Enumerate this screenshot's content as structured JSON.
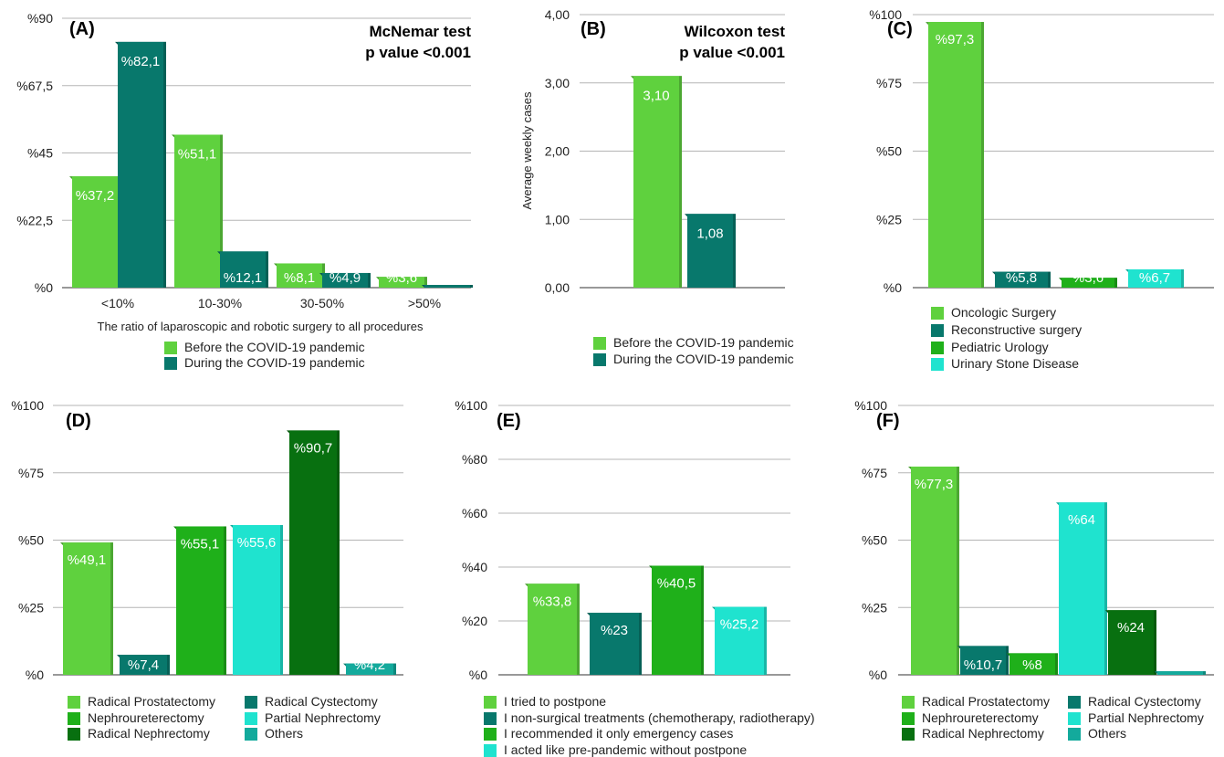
{
  "colors": {
    "light_green": "#5fd13e",
    "teal": "#08786c",
    "green": "#1fb01a",
    "cyan": "#1fe3cf",
    "dark_green": "#087010",
    "sea": "#13aa9c"
  },
  "chart_data": [
    {
      "id": "A",
      "type": "bar",
      "panel_label": "(A)",
      "stat_line1": "McNemar test",
      "stat_line2": "p value <0.001",
      "xlabel": "The ratio of laparoscopic and robotic surgery to all procedures",
      "ylabel": "",
      "ylim": [
        0,
        90
      ],
      "yticks": [
        0,
        22.5,
        45,
        67.5,
        90
      ],
      "ytick_labels": [
        "%0",
        "%22,5",
        "%45",
        "%67,5",
        "%90"
      ],
      "categories": [
        "<10%",
        "10-30%",
        "30-50%",
        ">50%"
      ],
      "series": [
        {
          "name": "Before the COVID-19 pandemic",
          "color": "#5fd13e",
          "values": [
            37.2,
            51.1,
            8.1,
            3.6
          ],
          "labels": [
            "%37,2",
            "%51,1",
            "%8,1",
            "%3,6"
          ]
        },
        {
          "name": "During the COVID-19 pandemic",
          "color": "#08786c",
          "values": [
            82.1,
            12.1,
            4.9,
            0.9
          ],
          "labels": [
            "%82,1",
            "%12,1",
            "%4,9",
            "%0,9"
          ]
        }
      ],
      "legend": [
        {
          "text": "Before the COVID-19 pandemic",
          "color": "#5fd13e"
        },
        {
          "text": "During the COVID-19 pandemic",
          "color": "#08786c"
        }
      ]
    },
    {
      "id": "B",
      "type": "bar",
      "panel_label": "(B)",
      "stat_line1": "Wilcoxon test",
      "stat_line2": "p value <0.001",
      "xlabel": "",
      "ylabel": "Average weekly cases",
      "ylim": [
        0,
        4
      ],
      "yticks": [
        0,
        1,
        2,
        3,
        4
      ],
      "ytick_labels": [
        "0,00",
        "1,00",
        "2,00",
        "3,00",
        "4,00"
      ],
      "categories": [
        ""
      ],
      "series": [
        {
          "name": "Before the COVID-19 pandemic",
          "color": "#5fd13e",
          "values": [
            3.1
          ],
          "labels": [
            "3,10"
          ]
        },
        {
          "name": "During the COVID-19 pandemic",
          "color": "#08786c",
          "values": [
            1.08
          ],
          "labels": [
            "1,08"
          ]
        }
      ],
      "legend": [
        {
          "text": "Before the COVID-19 pandemic",
          "color": "#5fd13e"
        },
        {
          "text": "During the COVID-19 pandemic",
          "color": "#08786c"
        }
      ]
    },
    {
      "id": "C",
      "type": "bar",
      "panel_label": "(C)",
      "ylim": [
        0,
        100
      ],
      "yticks": [
        0,
        25,
        50,
        75,
        100
      ],
      "ytick_labels": [
        "%0",
        "%25",
        "%50",
        "%75",
        "%100"
      ],
      "bars": [
        {
          "name": "Oncologic Surgery",
          "value": 97.3,
          "label": "%97,3",
          "color": "#5fd13e"
        },
        {
          "name": "Reconstructive surgery",
          "value": 5.8,
          "label": "%5,8",
          "color": "#08786c"
        },
        {
          "name": "Pediatric Urology",
          "value": 3.6,
          "label": "%3,6",
          "color": "#1fb01a"
        },
        {
          "name": "Urinary Stone Disease",
          "value": 6.7,
          "label": "%6,7",
          "color": "#1fe3cf"
        }
      ],
      "legend": [
        {
          "text": "Oncologic Surgery",
          "color": "#5fd13e"
        },
        {
          "text": "Reconstructive surgery",
          "color": "#08786c"
        },
        {
          "text": "Pediatric Urology",
          "color": "#1fb01a"
        },
        {
          "text": "Urinary Stone Disease",
          "color": "#1fe3cf"
        }
      ]
    },
    {
      "id": "D",
      "type": "bar",
      "panel_label": "(D)",
      "ylim": [
        0,
        100
      ],
      "yticks": [
        0,
        25,
        50,
        75,
        100
      ],
      "ytick_labels": [
        "%0",
        "%25",
        "%50",
        "%75",
        "%100"
      ],
      "bars": [
        {
          "name": "Radical Prostatectomy",
          "value": 49.1,
          "label": "%49,1",
          "color": "#5fd13e"
        },
        {
          "name": "Radical Cystectomy",
          "value": 7.4,
          "label": "%7,4",
          "color": "#08786c"
        },
        {
          "name": "Nephroureterectomy",
          "value": 55.1,
          "label": "%55,1",
          "color": "#1fb01a"
        },
        {
          "name": "Partial Nephrectomy",
          "value": 55.6,
          "label": "%55,6",
          "color": "#1fe3cf"
        },
        {
          "name": "Radical Nephrectomy",
          "value": 90.7,
          "label": "%90,7",
          "color": "#087010"
        },
        {
          "name": "Others",
          "value": 4.2,
          "label": "%4,2",
          "color": "#13aa9c"
        }
      ],
      "legend": [
        {
          "text": "Radical Prostatectomy",
          "color": "#5fd13e"
        },
        {
          "text": "Radical Cystectomy",
          "color": "#08786c"
        },
        {
          "text": "Nephroureterectomy",
          "color": "#1fb01a"
        },
        {
          "text": "Partial Nephrectomy",
          "color": "#1fe3cf"
        },
        {
          "text": "Radical Nephrectomy",
          "color": "#087010"
        },
        {
          "text": "Others",
          "color": "#13aa9c"
        }
      ]
    },
    {
      "id": "E",
      "type": "bar",
      "panel_label": "(E)",
      "ylim": [
        0,
        100
      ],
      "yticks": [
        0,
        20,
        40,
        60,
        80,
        100
      ],
      "ytick_labels": [
        "%0",
        "%20",
        "%40",
        "%60",
        "%80",
        "%100"
      ],
      "bars": [
        {
          "name": "I tried to postpone",
          "value": 33.8,
          "label": "%33,8",
          "color": "#5fd13e"
        },
        {
          "name": "I non-surgical treatments (chemotherapy, radiotherapy)",
          "value": 23,
          "label": "%23",
          "color": "#08786c"
        },
        {
          "name": "I recommended it only emergency cases",
          "value": 40.5,
          "label": "%40,5",
          "color": "#1fb01a"
        },
        {
          "name": "I acted like pre-pandemic without postpone",
          "value": 25.2,
          "label": "%25,2",
          "color": "#1fe3cf"
        }
      ],
      "legend": [
        {
          "text": "I tried to postpone",
          "color": "#5fd13e"
        },
        {
          "text": "I non-surgical treatments (chemotherapy, radiotherapy)",
          "color": "#08786c"
        },
        {
          "text": "I recommended it only emergency cases",
          "color": "#1fb01a"
        },
        {
          "text": "I acted like pre-pandemic without postpone",
          "color": "#1fe3cf"
        }
      ]
    },
    {
      "id": "F",
      "type": "bar",
      "panel_label": "(F)",
      "ylim": [
        0,
        100
      ],
      "yticks": [
        0,
        25,
        50,
        75,
        100
      ],
      "ytick_labels": [
        "%0",
        "%25",
        "%50",
        "%75",
        "%100"
      ],
      "bars": [
        {
          "name": "Radical Prostatectomy",
          "value": 77.3,
          "label": "%77,3",
          "color": "#5fd13e"
        },
        {
          "name": "Radical Cystectomy",
          "value": 10.7,
          "label": "%10,7",
          "color": "#08786c"
        },
        {
          "name": "Nephroureterectomy",
          "value": 8,
          "label": "%8",
          "color": "#1fb01a"
        },
        {
          "name": "Partial Nephrectomy",
          "value": 64,
          "label": "%64",
          "color": "#1fe3cf"
        },
        {
          "name": "Radical Nephrectomy",
          "value": 24,
          "label": "%24",
          "color": "#087010"
        },
        {
          "name": "Others",
          "value": 1.3,
          "label": "%1,3",
          "color": "#13aa9c"
        }
      ],
      "legend": [
        {
          "text": "Radical Prostatectomy",
          "color": "#5fd13e"
        },
        {
          "text": "Radical Cystectomy",
          "color": "#08786c"
        },
        {
          "text": "Nephroureterectomy",
          "color": "#1fb01a"
        },
        {
          "text": "Partial Nephrectomy",
          "color": "#1fe3cf"
        },
        {
          "text": "Radical Nephrectomy",
          "color": "#087010"
        },
        {
          "text": "Others",
          "color": "#13aa9c"
        }
      ]
    }
  ]
}
